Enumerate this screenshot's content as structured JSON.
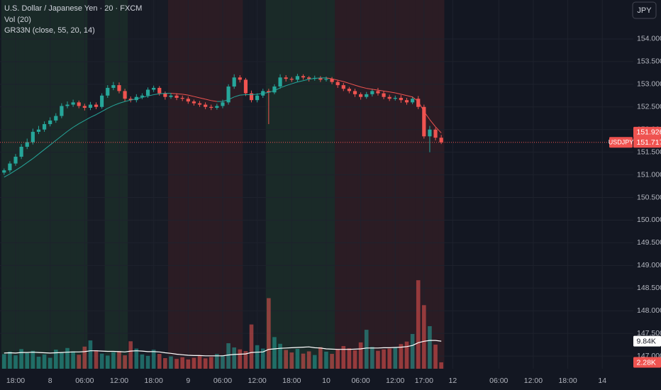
{
  "chart_data": {
    "type": "candlestick",
    "title": "U.S. Dollar / Japanese Yen · 20 · FXCM",
    "indicators": [
      "Vol (20)",
      "GR33N (close, 55, 20, 14)"
    ],
    "currency": "JPY",
    "symbol": "USDJPY",
    "categories": [
      null,
      null,
      "18:00",
      null,
      null,
      null,
      null,
      null,
      "8",
      null,
      null,
      null,
      null,
      null,
      "06:00",
      null,
      null,
      null,
      null,
      null,
      "12:00",
      null,
      null,
      null,
      null,
      null,
      "18:00",
      null,
      null,
      null,
      null,
      null,
      "9",
      null,
      null,
      null,
      null,
      null,
      "06:00",
      null,
      null,
      null,
      null,
      null,
      "12:00",
      null,
      null,
      null,
      null,
      null,
      "18:00",
      null,
      null,
      null,
      null,
      null,
      "10",
      null,
      null,
      null,
      null,
      null,
      "06:00",
      null,
      null,
      null,
      null,
      null,
      "12:00",
      null,
      null,
      null,
      null,
      "17:00",
      null,
      null,
      null,
      null,
      "12",
      null,
      null,
      null,
      null,
      null,
      null,
      null,
      "06:00",
      null,
      null,
      null,
      null,
      null,
      "12:00",
      null,
      null,
      null,
      null,
      null,
      "18:00",
      null,
      null,
      null,
      null,
      null,
      "14",
      null
    ],
    "open": [
      151.05,
      151.1,
      151.25,
      151.4,
      151.62,
      151.72,
      151.95,
      152.0,
      152.12,
      152.2,
      152.3,
      152.52,
      152.55,
      152.6,
      152.52,
      152.48,
      152.55,
      152.5,
      152.75,
      152.92,
      152.98,
      152.85,
      152.68,
      152.65,
      152.72,
      152.75,
      152.88,
      152.92,
      152.8,
      152.72,
      152.75,
      152.7,
      152.68,
      152.62,
      152.58,
      152.55,
      152.5,
      152.48,
      152.52,
      152.6,
      152.95,
      153.15,
      153.1,
      152.8,
      152.65,
      152.75,
      152.85,
      152.82,
      152.95,
      153.15,
      153.12,
      153.1,
      153.18,
      153.15,
      153.12,
      153.14,
      153.1,
      153.12,
      153.05,
      152.98,
      152.9,
      152.85,
      152.78,
      152.72,
      152.78,
      152.85,
      152.8,
      152.72,
      152.68,
      152.7,
      152.65,
      152.6,
      152.68,
      152.5,
      151.85,
      152.0,
      151.82,
      null,
      null,
      null,
      null,
      null,
      null,
      null,
      null,
      null,
      null,
      null,
      null,
      null,
      null,
      null,
      null,
      null,
      null,
      null,
      null,
      null,
      null,
      null,
      null,
      null,
      null,
      null,
      null,
      null
    ],
    "high": [
      151.14,
      151.3,
      151.46,
      151.68,
      151.8,
      152.02,
      152.08,
      152.18,
      152.27,
      152.36,
      152.58,
      152.62,
      152.66,
      152.64,
      152.57,
      152.61,
      152.6,
      152.8,
      152.98,
      153.05,
      153.04,
      152.9,
      152.73,
      152.78,
      152.8,
      152.93,
      152.97,
      152.96,
      152.84,
      152.8,
      152.8,
      152.75,
      152.73,
      152.66,
      152.63,
      152.6,
      152.55,
      152.57,
      152.66,
      153.0,
      153.22,
      153.2,
      153.14,
      152.86,
      152.8,
      152.9,
      152.9,
      153.0,
      153.22,
      153.2,
      153.16,
      153.23,
      153.22,
      153.18,
      153.19,
      153.18,
      153.17,
      153.16,
      153.1,
      153.03,
      152.94,
      152.9,
      152.82,
      152.83,
      152.9,
      152.92,
      152.85,
      152.77,
      152.75,
      152.76,
      152.7,
      152.73,
      152.74,
      152.55,
      152.08,
      152.04,
      151.88,
      null,
      null,
      null,
      null,
      null,
      null,
      null,
      null,
      null,
      null,
      null,
      null,
      null,
      null,
      null,
      null,
      null,
      null,
      null,
      null,
      null,
      null,
      null,
      null,
      null,
      null,
      null,
      null,
      null
    ],
    "low": [
      151.0,
      151.05,
      151.2,
      151.35,
      151.57,
      151.67,
      151.9,
      151.95,
      152.07,
      152.15,
      152.25,
      152.47,
      152.5,
      152.47,
      152.42,
      152.43,
      152.45,
      152.46,
      152.7,
      152.87,
      152.8,
      152.62,
      152.6,
      152.6,
      152.67,
      152.7,
      152.83,
      152.75,
      152.66,
      152.68,
      152.65,
      152.63,
      152.57,
      152.53,
      152.5,
      152.45,
      152.43,
      152.44,
      152.47,
      152.55,
      152.9,
      153.04,
      152.74,
      152.6,
      152.6,
      152.7,
      152.12,
      152.78,
      152.9,
      153.06,
      153.05,
      153.05,
      153.1,
      153.06,
      153.08,
      153.05,
      153.06,
      153.0,
      152.92,
      152.85,
      152.8,
      152.72,
      152.66,
      152.68,
      152.73,
      152.75,
      152.67,
      152.63,
      152.64,
      152.59,
      152.55,
      152.56,
      152.45,
      151.8,
      151.5,
      151.76,
      151.68,
      null,
      null,
      null,
      null,
      null,
      null,
      null,
      null,
      null,
      null,
      null,
      null,
      null,
      null,
      null,
      null,
      null,
      null,
      null,
      null,
      null,
      null,
      null,
      null,
      null,
      null,
      null,
      null,
      null
    ],
    "close": [
      151.1,
      151.25,
      151.4,
      151.62,
      151.72,
      151.95,
      152.0,
      152.12,
      152.2,
      152.3,
      152.52,
      152.55,
      152.6,
      152.52,
      152.48,
      152.55,
      152.5,
      152.75,
      152.92,
      152.98,
      152.85,
      152.68,
      152.65,
      152.72,
      152.75,
      152.88,
      152.92,
      152.8,
      152.72,
      152.75,
      152.7,
      152.68,
      152.62,
      152.58,
      152.55,
      152.5,
      152.48,
      152.52,
      152.6,
      152.95,
      153.15,
      153.1,
      152.8,
      152.65,
      152.75,
      152.85,
      152.82,
      152.95,
      153.15,
      153.12,
      153.1,
      153.18,
      153.15,
      153.12,
      153.14,
      153.1,
      153.12,
      153.05,
      152.98,
      152.9,
      152.85,
      152.78,
      152.72,
      152.78,
      152.85,
      152.8,
      152.72,
      152.68,
      152.7,
      152.65,
      152.6,
      152.68,
      152.5,
      151.85,
      152.0,
      151.82,
      151.717,
      null,
      null,
      null,
      null,
      null,
      null,
      null,
      null,
      null,
      null,
      null,
      null,
      null,
      null,
      null,
      null,
      null,
      null,
      null,
      null,
      null,
      null,
      null,
      null,
      null,
      null,
      null,
      null,
      null
    ],
    "ma": [
      150.95,
      151.02,
      151.1,
      151.18,
      151.27,
      151.36,
      151.46,
      151.56,
      151.66,
      151.76,
      151.86,
      151.96,
      152.05,
      152.13,
      152.2,
      152.27,
      152.33,
      152.4,
      152.47,
      152.53,
      152.58,
      152.62,
      152.65,
      152.68,
      152.71,
      152.74,
      152.77,
      152.79,
      152.8,
      152.8,
      152.79,
      152.78,
      152.76,
      152.73,
      152.7,
      152.67,
      152.64,
      152.62,
      152.62,
      152.66,
      152.72,
      152.76,
      152.77,
      152.77,
      152.78,
      152.8,
      152.82,
      152.86,
      152.92,
      152.97,
      153.01,
      153.05,
      153.08,
      153.11,
      153.13,
      153.14,
      153.14,
      153.12,
      153.09,
      153.06,
      153.02,
      152.98,
      152.94,
      152.91,
      152.89,
      152.87,
      152.85,
      152.83,
      152.81,
      152.78,
      152.75,
      152.72,
      152.62,
      152.4,
      152.22,
      152.06,
      151.926,
      null,
      null,
      null,
      null,
      null,
      null,
      null,
      null,
      null,
      null,
      null,
      null,
      null,
      null,
      null,
      null,
      null,
      null,
      null,
      null,
      null,
      null,
      null,
      null,
      null,
      null,
      null,
      null,
      null
    ],
    "volume": [
      5200,
      6100,
      4800,
      7000,
      5600,
      6400,
      4300,
      5100,
      3900,
      6800,
      5800,
      7400,
      6200,
      5000,
      7900,
      10100,
      6600,
      5400,
      4700,
      5900,
      6300,
      4800,
      9800,
      7200,
      5100,
      4600,
      6800,
      5300,
      3800,
      4400,
      3500,
      4100,
      3300,
      3900,
      4600,
      3700,
      4200,
      5300,
      4800,
      9100,
      7600,
      6900,
      6300,
      15800,
      8400,
      7200,
      25200,
      11300,
      8900,
      6700,
      5800,
      7100,
      5400,
      6200,
      4900,
      7700,
      6100,
      5300,
      6900,
      8100,
      7300,
      6600,
      9400,
      13900,
      7800,
      6400,
      6900,
      7200,
      7600,
      8800,
      9700,
      12400,
      31600,
      22700,
      15200,
      8600,
      2280,
      null,
      null,
      null,
      null,
      null,
      null,
      null,
      null,
      null,
      null,
      null,
      null,
      null,
      null,
      null,
      null,
      null,
      null,
      null,
      null,
      null,
      null,
      null,
      null,
      null,
      null,
      null,
      null,
      null
    ],
    "volume_ma": [
      5600,
      5700,
      5600,
      5800,
      5800,
      5900,
      5800,
      5700,
      5600,
      5700,
      5800,
      5900,
      6000,
      6000,
      6100,
      6400,
      6400,
      6300,
      6200,
      6200,
      6100,
      6000,
      6300,
      6400,
      6300,
      6100,
      6100,
      6000,
      5700,
      5500,
      5200,
      5000,
      4800,
      4700,
      4700,
      4600,
      4600,
      4600,
      4600,
      4900,
      5100,
      5200,
      5300,
      5800,
      5900,
      6000,
      6900,
      7100,
      7300,
      7400,
      7500,
      7600,
      7700,
      7800,
      7500,
      7400,
      7100,
      7000,
      6900,
      6900,
      6900,
      7000,
      7100,
      7400,
      7400,
      7400,
      7500,
      7500,
      7600,
      7700,
      7900,
      8300,
      9300,
      9800,
      10100,
      10100,
      9840,
      null,
      null,
      null,
      null,
      null,
      null,
      null,
      null,
      null,
      null,
      null,
      null,
      null,
      null,
      null,
      null,
      null,
      null,
      null,
      null,
      null,
      null,
      null,
      null,
      null,
      null,
      null,
      null,
      null
    ],
    "regime": [
      1,
      1,
      1,
      1,
      1,
      1,
      1,
      1,
      1,
      1,
      1,
      1,
      1,
      1,
      1,
      0,
      0,
      0,
      1,
      1,
      1,
      1,
      0,
      0,
      0,
      0,
      0,
      0,
      0,
      -1,
      -1,
      -1,
      -1,
      -1,
      -1,
      -1,
      -1,
      -1,
      -1,
      -1,
      -1,
      -1,
      0,
      0,
      0,
      0,
      1,
      1,
      1,
      1,
      1,
      1,
      1,
      1,
      1,
      1,
      1,
      1,
      -1,
      -1,
      -1,
      -1,
      -1,
      -1,
      -1,
      -1,
      -1,
      -1,
      -1,
      -1,
      -1,
      -1,
      -1,
      -1,
      -1,
      -1,
      -1,
      null,
      null,
      null,
      null,
      null,
      null,
      null,
      null,
      null,
      null,
      null,
      null,
      null,
      null,
      null,
      null,
      null,
      null,
      null,
      null,
      null,
      null,
      null,
      null,
      null,
      null,
      null,
      null,
      null
    ],
    "last_price": {
      "value": 151.717,
      "label": "151.717"
    },
    "ma_last": {
      "value": 151.926,
      "label": "151.926"
    },
    "volume_last": {
      "value": 2280,
      "label": "2.28K"
    },
    "volume_ma_last": {
      "value": 9840,
      "label": "9.84K"
    },
    "ylim": [
      146.72,
      154.86
    ],
    "yticks": [
      {
        "value": 147,
        "label": "147.000"
      },
      {
        "value": 147.5,
        "label": "147.500"
      },
      {
        "value": 148,
        "label": "148.000"
      },
      {
        "value": 148.5,
        "label": "148.500"
      },
      {
        "value": 149,
        "label": "149.000"
      },
      {
        "value": 149.5,
        "label": "149.500"
      },
      {
        "value": 150,
        "label": "150.000"
      },
      {
        "value": 150.5,
        "label": "150.500"
      },
      {
        "value": 151,
        "label": "151.000"
      },
      {
        "value": 151.5,
        "label": "151.500"
      },
      {
        "value": 152,
        "label": "152.000"
      },
      {
        "value": 152.5,
        "label": "152.500"
      },
      {
        "value": 153,
        "label": "153.000"
      },
      {
        "value": 153.5,
        "label": "153.500"
      },
      {
        "value": 154,
        "label": "154.000"
      }
    ],
    "volume_ylim": [
      0,
      40000
    ],
    "grid": true,
    "colors": {
      "up": "#26a69a",
      "down": "#ef5350",
      "volume_ma": "#ffffff",
      "bull_zone": "#1a2a28",
      "bear_zone": "#2b1c24",
      "flat_zone": "#171b25"
    }
  }
}
